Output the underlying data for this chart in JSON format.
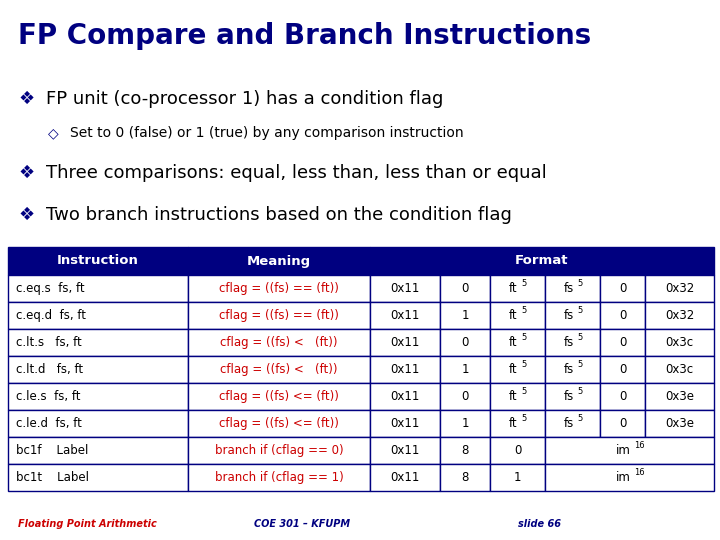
{
  "title": "FP Compare and Branch Instructions",
  "title_bg": "#c8c8e8",
  "title_color": "#000080",
  "slide_bg": "#ffffff",
  "footer_bg": "#ffffcc",
  "bullet1": "FP unit (co-processor 1) has a condition flag",
  "bullet1_sub": "Set to 0 (false) or 1 (true) by any comparison instruction",
  "bullet2": "Three comparisons: equal, less than, less than or equal",
  "bullet3": "Two branch instructions based on the condition flag",
  "bullet_color": "#000000",
  "table_header_bg": "#000080",
  "table_header_color": "#ffffff",
  "table_border_color": "#000080",
  "table_text_color": "#000000",
  "table_red_color": "#cc0000",
  "rows": [
    [
      "c.eq.s  fs, ft",
      "cflag = ((fs) == (ft))",
      "0x11",
      "0",
      "ft",
      "5",
      "fs",
      "5",
      "0",
      "0x32"
    ],
    [
      "c.eq.d  fs, ft",
      "cflag = ((fs) == (ft))",
      "0x11",
      "1",
      "ft",
      "5",
      "fs",
      "5",
      "0",
      "0x32"
    ],
    [
      "c.lt.s   fs, ft",
      "cflag = ((fs) <   (ft))",
      "0x11",
      "0",
      "ft",
      "5",
      "fs",
      "5",
      "0",
      "0x3c"
    ],
    [
      "c.lt.d   fs, ft",
      "cflag = ((fs) <   (ft))",
      "0x11",
      "1",
      "ft",
      "5",
      "fs",
      "5",
      "0",
      "0x3c"
    ],
    [
      "c.le.s  fs, ft",
      "cflag = ((fs) <= (ft))",
      "0x11",
      "0",
      "ft",
      "5",
      "fs",
      "5",
      "0",
      "0x3e"
    ],
    [
      "c.le.d  fs, ft",
      "cflag = ((fs) <= (ft))",
      "0x11",
      "1",
      "ft",
      "5",
      "fs",
      "5",
      "0",
      "0x3e"
    ],
    [
      "bc1f    Label",
      "branch if (cflag == 0)",
      "0x11",
      "8",
      "0",
      "",
      "",
      "",
      "",
      ""
    ],
    [
      "bc1t    Label",
      "branch if (cflag == 1)",
      "0x11",
      "8",
      "1",
      "",
      "",
      "",
      "",
      ""
    ]
  ],
  "footer_left": "Floating Point Arithmetic",
  "footer_mid": "COE 301 – KFUPM",
  "footer_right": "slide 66"
}
